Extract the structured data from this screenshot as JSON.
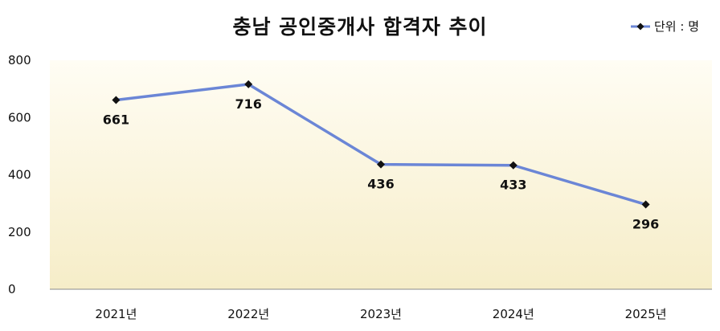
{
  "chart_data": {
    "type": "line",
    "title": "충남 공인중개사 합격자 추이",
    "legend": "단위 : 명",
    "legend_position": "top-right",
    "categories": [
      "2021년",
      "2022년",
      "2023년",
      "2024년",
      "2025년"
    ],
    "series": [
      {
        "values": [
          661,
          716,
          436,
          433,
          296
        ]
      }
    ],
    "data_labels": [
      "661",
      "716",
      "436",
      "433",
      "296"
    ],
    "yticks": [
      "0",
      "200",
      "400",
      "600",
      "800"
    ],
    "ylim": [
      0,
      800
    ],
    "grid": false,
    "colors": {
      "line": "#6b86d6",
      "marker": "#111111",
      "plot_top": "#fffdf4",
      "plot_bottom": "#f6edc8"
    }
  }
}
